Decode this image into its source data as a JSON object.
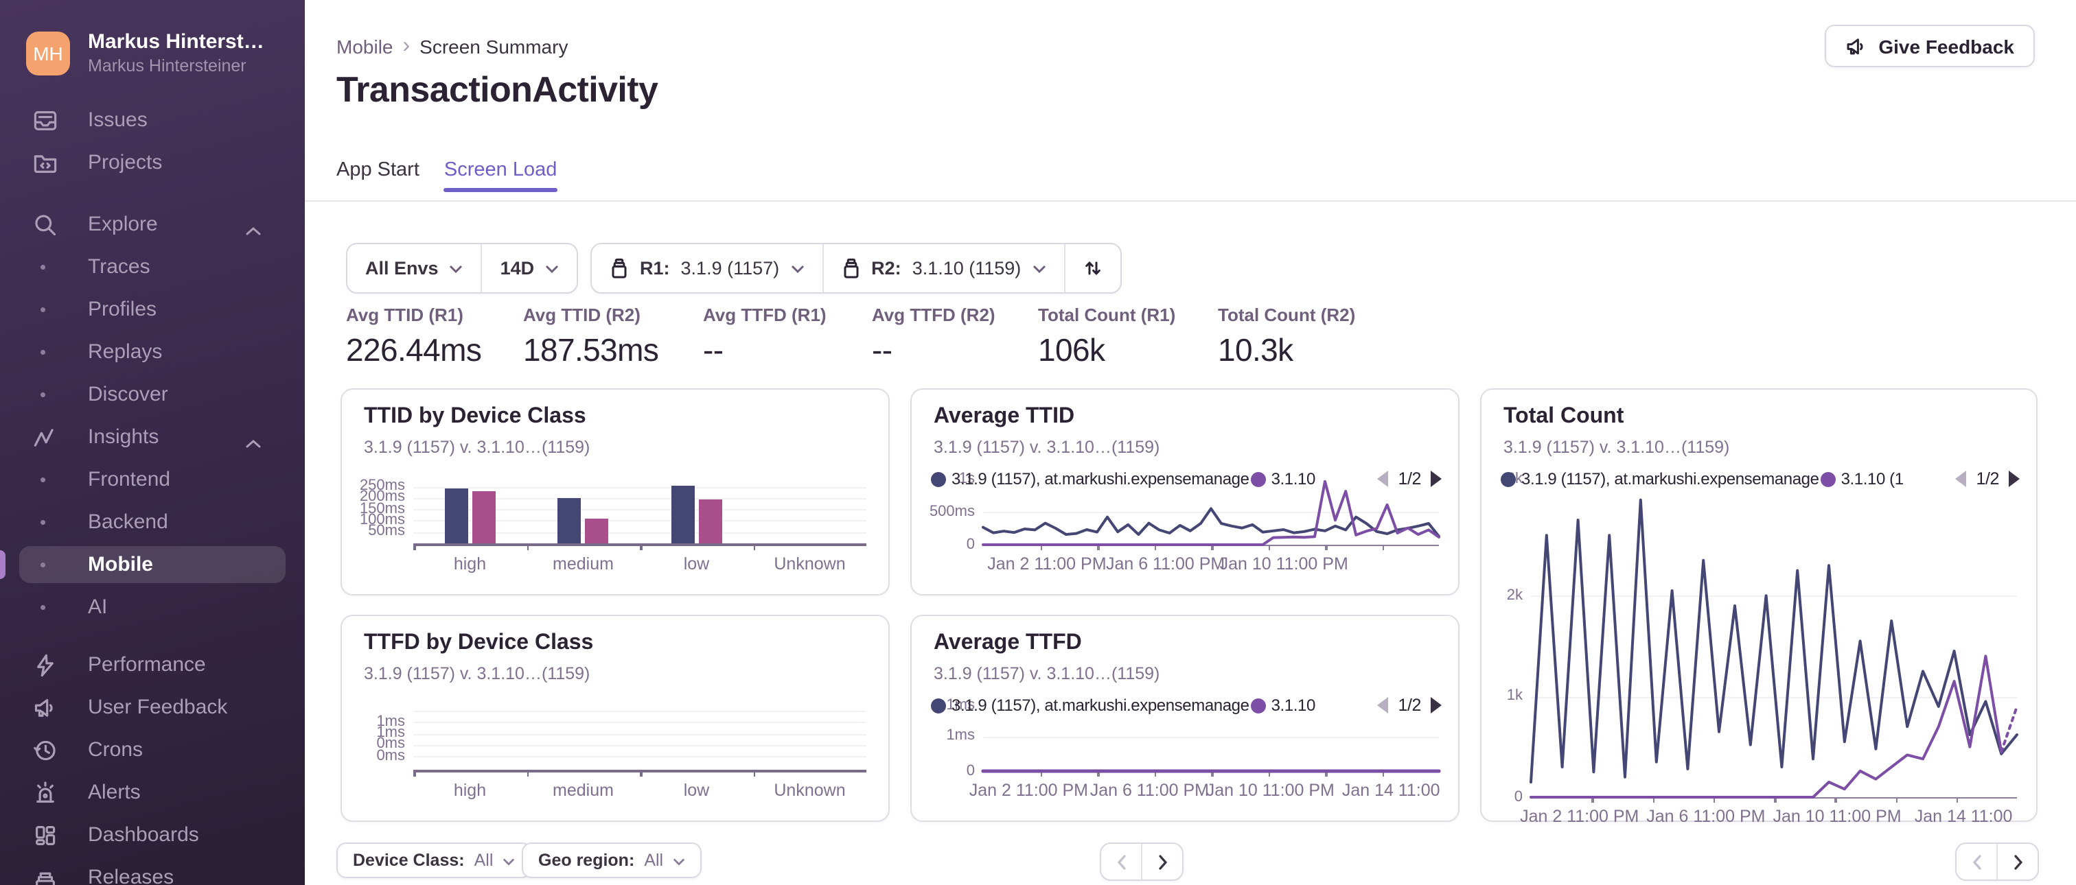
{
  "sidebar": {
    "user": {
      "initials": "MH",
      "display_name": "Markus Hinterst…",
      "full_name": "Markus Hintersteiner"
    },
    "sections": [
      {
        "items": [
          {
            "label": "Issues",
            "icon": "issues"
          },
          {
            "label": "Projects",
            "icon": "projects"
          }
        ]
      },
      {
        "items": [
          {
            "label": "Explore",
            "icon": "search",
            "chevron": true
          },
          {
            "label": "Traces",
            "sub": true
          },
          {
            "label": "Profiles",
            "sub": true
          },
          {
            "label": "Replays",
            "sub": true
          },
          {
            "label": "Discover",
            "sub": true
          },
          {
            "label": "Insights",
            "icon": "insights",
            "chevron": true
          },
          {
            "label": "Frontend",
            "sub": true
          },
          {
            "label": "Backend",
            "sub": true
          },
          {
            "label": "Mobile",
            "sub": true,
            "active": true
          },
          {
            "label": "AI",
            "sub": true
          }
        ]
      },
      {
        "items": [
          {
            "label": "Performance",
            "icon": "performance"
          },
          {
            "label": "User Feedback",
            "icon": "megaphone"
          },
          {
            "label": "Crons",
            "icon": "crons"
          },
          {
            "label": "Alerts",
            "icon": "alerts"
          },
          {
            "label": "Dashboards",
            "icon": "dashboards"
          },
          {
            "label": "Releases",
            "icon": "releases"
          }
        ]
      }
    ]
  },
  "header": {
    "breadcrumb": [
      "Mobile",
      "Screen Summary"
    ],
    "title": "TransactionActivity",
    "feedback_label": "Give Feedback",
    "tabs": [
      {
        "label": "App Start",
        "active": false
      },
      {
        "label": "Screen Load",
        "active": true
      }
    ]
  },
  "filters": {
    "env": "All Envs",
    "range": "14D",
    "r1": {
      "label": "R1:",
      "value": "3.1.9 (1157)"
    },
    "r2": {
      "label": "R2:",
      "value": "3.1.10 (1159)"
    }
  },
  "stats": [
    {
      "label": "Avg TTID (R1)",
      "value": "226.44ms"
    },
    {
      "label": "Avg TTID (R2)",
      "value": "187.53ms"
    },
    {
      "label": "Avg TTFD (R1)",
      "value": "--"
    },
    {
      "label": "Avg TTFD (R2)",
      "value": "--"
    },
    {
      "label": "Total Count (R1)",
      "value": "106k"
    },
    {
      "label": "Total Count (R2)",
      "value": "10.3k"
    }
  ],
  "bottom_filters": {
    "device_class": {
      "label": "Device Class:",
      "value": "All"
    },
    "geo": {
      "label": "Geo region:",
      "value": "All"
    }
  },
  "colors": {
    "accent": "#6d5fc7",
    "series_r1": "#444674",
    "series_r2_bar": "#a84f8c",
    "series_r2_line": "#7c4ea5",
    "sidebar_active_indicator": "#a97fc9",
    "avatar": "#f4a36e"
  },
  "chart_data": [
    {
      "id": "ttid_bars",
      "type": "bar",
      "title": "TTID by Device Class",
      "subtitle": "3.1.9 (1157) v. 3.1.10…(1159)",
      "categories": [
        "high",
        "medium",
        "low",
        "Unknown"
      ],
      "series": [
        {
          "name": "3.1.9 (1157)",
          "color": "#444674",
          "values": [
            238,
            199,
            252,
            0
          ]
        },
        {
          "name": "3.1.10 (1159)",
          "color": "#a84f8c",
          "values": [
            229,
            107,
            195,
            0
          ]
        }
      ],
      "ylabel_ticks": [
        "250ms",
        "200ms",
        "150ms",
        "100ms",
        "50ms"
      ],
      "ylim": [
        0,
        295
      ],
      "unit": "ms"
    },
    {
      "id": "avg_ttid",
      "type": "line",
      "title": "Average TTID",
      "subtitle": "3.1.9 (1157) v. 3.1.10…(1159)",
      "legend": {
        "items": [
          {
            "name": "3.1.9 (1157), at.markushi.expensemanage",
            "color": "#444674"
          },
          {
            "name": "3.1.10",
            "color": "#7c4ea5"
          }
        ],
        "page": "1/2"
      },
      "ylabel_ticks": [
        "500ms",
        "0"
      ],
      "hidden_ylabel": "1s",
      "ylim": [
        0,
        1085
      ],
      "x_ticks": [
        "Jan 2 11:00 PM",
        "Jan 6 11:00 PM",
        "Jan 10 11:00 PM"
      ],
      "series": [
        {
          "name": "3.1.9 (1157)",
          "color": "#444674",
          "values": [
            270,
            185,
            210,
            190,
            245,
            230,
            335,
            255,
            160,
            175,
            235,
            195,
            430,
            200,
            310,
            160,
            335,
            230,
            180,
            300,
            215,
            330,
            560,
            330,
            290,
            260,
            310,
            195,
            215,
            235,
            185,
            205,
            240,
            215,
            290,
            230,
            430,
            330,
            205,
            170,
            230,
            255,
            290,
            330,
            130
          ]
        },
        {
          "name": "3.1.10 (1159)",
          "color": "#7c4ea5",
          "values": [
            0,
            0,
            0,
            0,
            0,
            0,
            0,
            0,
            0,
            0,
            0,
            0,
            0,
            0,
            0,
            0,
            0,
            0,
            0,
            0,
            0,
            0,
            0,
            0,
            0,
            0,
            0,
            0,
            110,
            115,
            120,
            115,
            125,
            980,
            380,
            830,
            150,
            210,
            250,
            620,
            180,
            260,
            160,
            230,
            120
          ]
        }
      ]
    },
    {
      "id": "total_count",
      "type": "line",
      "title": "Total Count",
      "subtitle": "3.1.9 (1157) v. 3.1.10…(1159)",
      "legend": {
        "items": [
          {
            "name": "3.1.9 (1157), at.markushi.expensemanage",
            "color": "#444674"
          },
          {
            "name": "3.1.10 (1",
            "color": "#7c4ea5"
          }
        ],
        "page": "1/2"
      },
      "ylabel_ticks": [
        "2k",
        "1k",
        "0"
      ],
      "hidden_ylabel": "3k",
      "ylim": [
        0,
        3200
      ],
      "x_ticks": [
        "Jan 2 11:00 PM",
        "Jan 6 11:00 PM",
        "Jan 10 11:00 PM",
        "Jan 14 11:00"
      ],
      "series": [
        {
          "name": "3.1.9 (1157)",
          "color": "#444674",
          "values": [
            150,
            2600,
            300,
            2750,
            250,
            2600,
            200,
            2950,
            350,
            2050,
            280,
            2350,
            650,
            1900,
            520,
            2000,
            300,
            2250,
            380,
            2300,
            550,
            1550,
            480,
            1750,
            700,
            1250,
            900,
            1450,
            620,
            950,
            430,
            620
          ]
        },
        {
          "name": "3.1.10 (1159)",
          "color": "#7c4ea5",
          "dash_from": 30,
          "values": [
            0,
            0,
            0,
            0,
            0,
            0,
            0,
            0,
            0,
            0,
            0,
            0,
            0,
            0,
            0,
            0,
            0,
            0,
            0,
            150,
            80,
            260,
            180,
            300,
            420,
            380,
            700,
            1150,
            500,
            1400,
            450,
            900
          ]
        }
      ]
    },
    {
      "id": "ttfd_bars",
      "type": "bar",
      "title": "TTFD by Device Class",
      "subtitle": "3.1.9 (1157) v. 3.1.10…(1159)",
      "categories": [
        "high",
        "medium",
        "low",
        "Unknown"
      ],
      "series": [
        {
          "name": "3.1.9 (1157)",
          "color": "#444674",
          "values": [
            0,
            0,
            0,
            0
          ]
        },
        {
          "name": "3.1.10 (1159)",
          "color": "#a84f8c",
          "values": [
            0,
            0,
            0,
            0
          ]
        }
      ],
      "ylabel_ticks": [
        "",
        "1ms",
        "1ms",
        "0ms",
        "0ms"
      ],
      "ylim": [
        0,
        2
      ],
      "unit": "ms"
    },
    {
      "id": "avg_ttfd",
      "type": "line",
      "title": "Average TTFD",
      "subtitle": "3.1.9 (1157) v. 3.1.10…(1159)",
      "legend": {
        "items": [
          {
            "name": "3.1.9 (1157), at.markushi.expensemanage",
            "color": "#444674"
          },
          {
            "name": "3.1.10",
            "color": "#7c4ea5"
          }
        ],
        "page": "1/2"
      },
      "ylabel_ticks": [
        "1ms",
        "0"
      ],
      "hidden_ylabel": "1ms",
      "ylim": [
        0,
        2
      ],
      "x_ticks": [
        "Jan 2 11:00 PM",
        "Jan 6 11:00 PM",
        "Jan 10 11:00 PM",
        "Jan 14 11:00"
      ],
      "series": [
        {
          "name": "3.1.9 (1157)",
          "color": "#444674",
          "values": [
            0,
            0,
            0,
            0,
            0,
            0,
            0,
            0,
            0,
            0,
            0,
            0,
            0,
            0,
            0,
            0,
            0,
            0,
            0,
            0,
            0,
            0,
            0,
            0,
            0,
            0,
            0,
            0,
            0,
            0,
            0,
            0,
            0,
            0,
            0,
            0,
            0,
            0,
            0,
            0,
            0,
            0,
            0,
            0,
            0
          ]
        },
        {
          "name": "3.1.10 (1159)",
          "color": "#7c4ea5",
          "values": [
            0,
            0,
            0,
            0,
            0,
            0,
            0,
            0,
            0,
            0,
            0,
            0,
            0,
            0,
            0,
            0,
            0,
            0,
            0,
            0,
            0,
            0,
            0,
            0,
            0,
            0,
            0,
            0,
            0,
            0,
            0,
            0,
            0,
            0,
            0,
            0,
            0,
            0,
            0,
            0,
            0,
            0,
            0,
            0,
            0
          ]
        }
      ]
    }
  ]
}
